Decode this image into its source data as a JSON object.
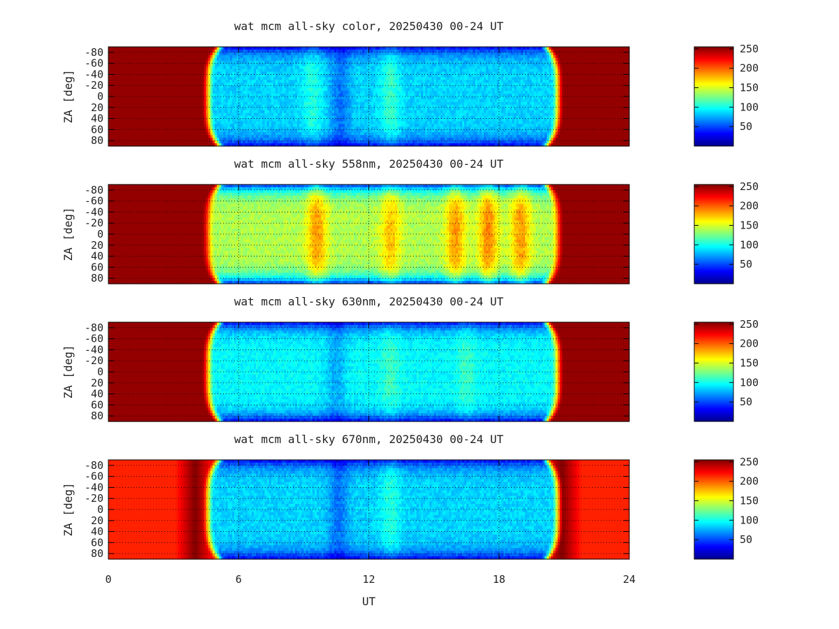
{
  "chart_data": {
    "type": "heatmap",
    "x_label": "UT",
    "x_range": [
      0,
      24
    ],
    "x_ticks": [
      "0",
      "6",
      "12",
      "18",
      "24"
    ],
    "y_label": "ZA [deg]",
    "y_range": [
      -90,
      90
    ],
    "y_ticks": [
      "-80",
      "-60",
      "-40",
      "-20",
      "0",
      "20",
      "40",
      "60",
      "80"
    ],
    "grid": true,
    "colorbar": {
      "range": [
        0,
        255
      ],
      "ticks": [
        "50",
        "100",
        "150",
        "200",
        "250"
      ],
      "colormap": "jet"
    },
    "panels": [
      {
        "title": "wat mcm all-sky color, 20250430 00-24 UT",
        "day_level": 250,
        "night_level": 85,
        "edge_level": 30,
        "bright_edge_start_ut": 4.0,
        "bright_edge_end_ut": 20.9,
        "sunlit_end_ut": 4.75,
        "sunlit_start_ut": 20.55,
        "bands": [
          {
            "ut": 9.4,
            "delta": 20
          },
          {
            "ut": 10.7,
            "delta": -25
          },
          {
            "ut": 13.0,
            "delta": 25
          }
        ]
      },
      {
        "title": "wat mcm all-sky 558nm, 20250430 00-24 UT",
        "day_level": 250,
        "night_level": 140,
        "edge_level": 40,
        "bright_edge_start_ut": 4.0,
        "bright_edge_end_ut": 20.9,
        "sunlit_end_ut": 4.75,
        "sunlit_start_ut": 20.55,
        "bands": [
          {
            "ut": 9.6,
            "delta": 45
          },
          {
            "ut": 13.0,
            "delta": 35
          },
          {
            "ut": 16.0,
            "delta": 45
          },
          {
            "ut": 17.5,
            "delta": 50
          },
          {
            "ut": 19.0,
            "delta": 45
          }
        ]
      },
      {
        "title": "wat mcm all-sky 630nm, 20250430 00-24 UT",
        "day_level": 250,
        "night_level": 95,
        "edge_level": 30,
        "bright_edge_start_ut": 4.0,
        "bright_edge_end_ut": 20.9,
        "sunlit_end_ut": 4.75,
        "sunlit_start_ut": 20.55,
        "bands": [
          {
            "ut": 10.5,
            "delta": -20
          },
          {
            "ut": 13.0,
            "delta": 15
          },
          {
            "ut": 16.5,
            "delta": 15
          }
        ]
      },
      {
        "title": "wat mcm all-sky 670nm, 20250430 00-24 UT",
        "day_level": 215,
        "night_level": 85,
        "edge_level": 30,
        "bright_edge_start_ut": 4.0,
        "bright_edge_end_ut": 20.9,
        "sunlit_end_ut": 4.75,
        "sunlit_start_ut": 20.55,
        "bands": [
          {
            "ut": 10.6,
            "delta": -25
          },
          {
            "ut": 13.0,
            "delta": 20
          }
        ]
      }
    ]
  }
}
